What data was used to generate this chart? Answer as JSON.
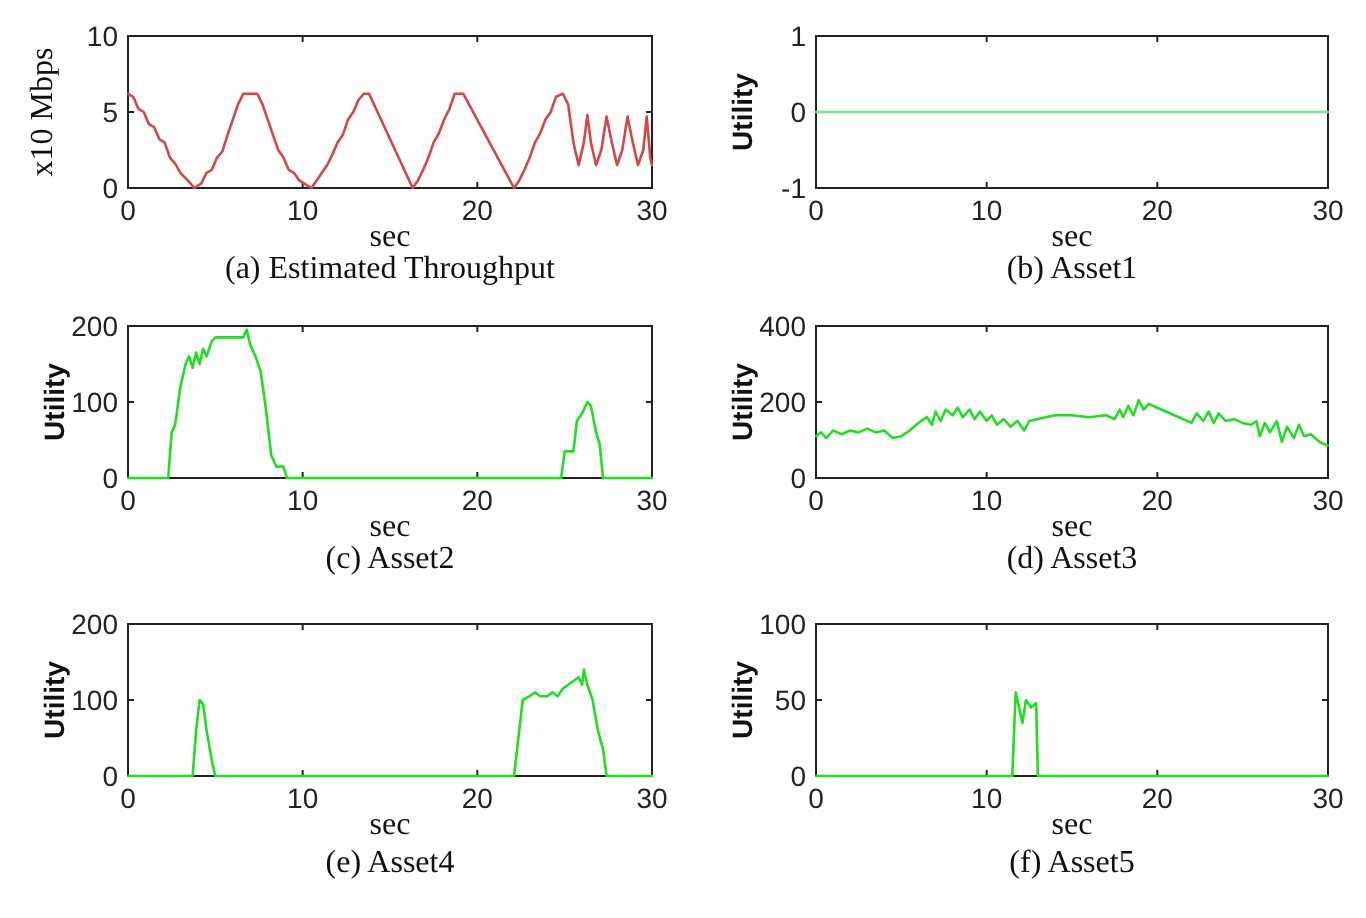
{
  "chart_data": [
    {
      "type": "line",
      "title": "(a) Estimated Throughput",
      "xlabel": "sec",
      "ylabel": "x10 Mbps",
      "xlim": [
        0,
        30
      ],
      "xticks": [
        0,
        10,
        20,
        30
      ],
      "ylim": [
        0,
        10
      ],
      "yticks": [
        0,
        5,
        10
      ],
      "series": [
        {
          "color": "#d04848",
          "x": [
            0,
            0.3,
            0.6,
            0.9,
            1.2,
            1.5,
            1.8,
            2.1,
            2.4,
            2.7,
            3.0,
            3.5,
            3.8,
            4.2,
            4.5,
            4.8,
            5.1,
            5.4,
            5.7,
            6.0,
            6.3,
            6.6,
            7.4,
            7.7,
            8.0,
            8.3,
            8.6,
            8.9,
            9.2,
            9.5,
            9.8,
            10.5,
            10.8,
            11.1,
            11.4,
            11.7,
            12.0,
            12.3,
            12.6,
            12.9,
            13.2,
            13.5,
            13.8,
            16.3,
            16.6,
            16.9,
            17.2,
            17.5,
            17.8,
            18.1,
            18.4,
            18.7,
            19.2,
            22.1,
            22.4,
            22.7,
            23.0,
            23.3,
            23.6,
            23.9,
            24.2,
            24.5,
            24.9,
            25.2,
            25.5,
            25.8,
            26.1,
            26.3,
            26.5,
            26.8,
            27.1,
            27.4,
            27.7,
            28.0,
            28.3,
            28.6,
            28.9,
            29.2,
            29.5,
            29.7,
            29.9,
            30
          ],
          "values": [
            6.2,
            6,
            5.2,
            5,
            4.2,
            4,
            3.2,
            3,
            2,
            1.6,
            1,
            0.4,
            0,
            0.3,
            1,
            1.2,
            2,
            2.4,
            3.5,
            4.5,
            5.5,
            6.2,
            6.2,
            5.5,
            4.5,
            3.5,
            2.5,
            2,
            1.2,
            1,
            0.5,
            0,
            0.5,
            1,
            1.5,
            2.2,
            3,
            3.5,
            4.5,
            5,
            5.8,
            6.2,
            6.2,
            0,
            0.5,
            1.2,
            2,
            3,
            3.6,
            4.5,
            5.2,
            6.2,
            6.2,
            0,
            0.5,
            1.2,
            2,
            3,
            3.6,
            4.5,
            5,
            6,
            6.2,
            5.5,
            3,
            1.5,
            3,
            4.8,
            3,
            1.5,
            2.5,
            4.7,
            3,
            1.5,
            2.5,
            4.7,
            3,
            1.5,
            2.5,
            4.7,
            2,
            1.5
          ]
        }
      ]
    },
    {
      "type": "line",
      "title": "(b) Asset1",
      "xlabel": "sec",
      "ylabel": "Utility",
      "xlim": [
        0,
        30
      ],
      "xticks": [
        0,
        10,
        20,
        30
      ],
      "ylim": [
        -1,
        1
      ],
      "yticks": [
        -1,
        0,
        1
      ],
      "series": [
        {
          "color": "#80e0a0",
          "x": [
            0,
            30
          ],
          "values": [
            0,
            0
          ]
        }
      ]
    },
    {
      "type": "line",
      "title": "(c) Asset2",
      "xlabel": "sec",
      "ylabel": "Utility",
      "xlim": [
        0,
        30
      ],
      "xticks": [
        0,
        10,
        20,
        30
      ],
      "ylim": [
        0,
        200
      ],
      "yticks": [
        0,
        100,
        200
      ],
      "series": [
        {
          "color": "#22dd22",
          "x": [
            0,
            2.3,
            2.5,
            2.7,
            3.0,
            3.3,
            3.5,
            3.7,
            3.9,
            4.1,
            4.3,
            4.5,
            4.8,
            5.0,
            6.0,
            6.6,
            6.8,
            7.0,
            7.3,
            7.6,
            7.9,
            8.2,
            8.5,
            8.9,
            9.1,
            24.8,
            25.0,
            25.5,
            25.7,
            26.0,
            26.3,
            26.5,
            26.8,
            27.0,
            27.2,
            30
          ],
          "values": [
            0,
            0,
            60,
            70,
            120,
            150,
            160,
            145,
            165,
            150,
            170,
            160,
            180,
            185,
            185,
            185,
            195,
            175,
            160,
            140,
            90,
            30,
            15,
            15,
            0,
            0,
            35,
            35,
            75,
            85,
            100,
            95,
            60,
            45,
            0,
            0
          ]
        }
      ]
    },
    {
      "type": "line",
      "title": "(d) Asset3",
      "xlabel": "sec",
      "ylabel": "Utility",
      "xlim": [
        0,
        30
      ],
      "xticks": [
        0,
        10,
        20,
        30
      ],
      "ylim": [
        0,
        400
      ],
      "yticks": [
        0,
        200,
        400
      ],
      "series": [
        {
          "color": "#22dd22",
          "x": [
            0,
            0.3,
            0.6,
            1,
            1.5,
            2,
            2.5,
            3,
            3.5,
            4,
            4.5,
            5,
            5.5,
            6,
            6.5,
            6.8,
            7,
            7.3,
            7.6,
            8,
            8.3,
            8.6,
            9,
            9.3,
            9.6,
            10,
            10.3,
            10.6,
            11,
            11.4,
            11.8,
            12.2,
            12.5,
            13,
            14,
            15,
            16,
            17,
            17.5,
            17.8,
            18,
            18.3,
            18.6,
            18.9,
            19.2,
            19.5,
            20,
            21,
            22,
            22.3,
            22.7,
            23,
            23.3,
            23.6,
            24,
            24.5,
            25,
            25.5,
            25.8,
            26,
            26.3,
            26.6,
            27,
            27.3,
            27.6,
            28,
            28.3,
            28.6,
            29,
            29.5,
            30
          ],
          "values": [
            110,
            120,
            105,
            125,
            115,
            125,
            120,
            130,
            120,
            125,
            105,
            110,
            125,
            145,
            160,
            140,
            175,
            150,
            180,
            165,
            185,
            160,
            180,
            155,
            175,
            150,
            165,
            140,
            155,
            135,
            150,
            125,
            150,
            155,
            165,
            165,
            160,
            165,
            155,
            180,
            160,
            190,
            165,
            205,
            180,
            195,
            185,
            165,
            145,
            170,
            150,
            175,
            145,
            170,
            150,
            155,
            145,
            140,
            150,
            110,
            145,
            120,
            150,
            95,
            135,
            105,
            140,
            110,
            115,
            95,
            85
          ]
        }
      ]
    },
    {
      "type": "line",
      "title": "(e) Asset4",
      "xlabel": "sec",
      "ylabel": "Utility",
      "xlim": [
        0,
        30
      ],
      "xticks": [
        0,
        10,
        20,
        30
      ],
      "ylim": [
        0,
        200
      ],
      "yticks": [
        0,
        100,
        200
      ],
      "series": [
        {
          "color": "#22dd22",
          "x": [
            0,
            3.7,
            3.9,
            4.1,
            4.3,
            4.5,
            4.8,
            5.0,
            22.1,
            22.3,
            22.6,
            23.0,
            23.3,
            23.6,
            24.0,
            24.3,
            24.6,
            24.9,
            25.2,
            25.5,
            25.8,
            26.0,
            26.1,
            26.3,
            26.6,
            26.9,
            27.2,
            27.4,
            30
          ],
          "values": [
            0,
            0,
            60,
            100,
            95,
            60,
            20,
            0,
            0,
            40,
            100,
            105,
            110,
            105,
            105,
            110,
            105,
            115,
            120,
            125,
            130,
            120,
            140,
            120,
            100,
            60,
            35,
            0,
            0
          ]
        }
      ]
    },
    {
      "type": "line",
      "title": "(f) Asset5",
      "xlabel": "sec",
      "ylabel": "Utility",
      "xlim": [
        0,
        30
      ],
      "xticks": [
        0,
        10,
        20,
        30
      ],
      "ylim": [
        0,
        100
      ],
      "yticks": [
        0,
        50,
        100
      ],
      "series": [
        {
          "color": "#22dd22",
          "x": [
            0,
            11.5,
            11.7,
            11.9,
            12.1,
            12.3,
            12.6,
            12.9,
            13.0,
            30
          ],
          "values": [
            0,
            0,
            55,
            45,
            35,
            50,
            45,
            48,
            0,
            0
          ]
        }
      ]
    }
  ]
}
